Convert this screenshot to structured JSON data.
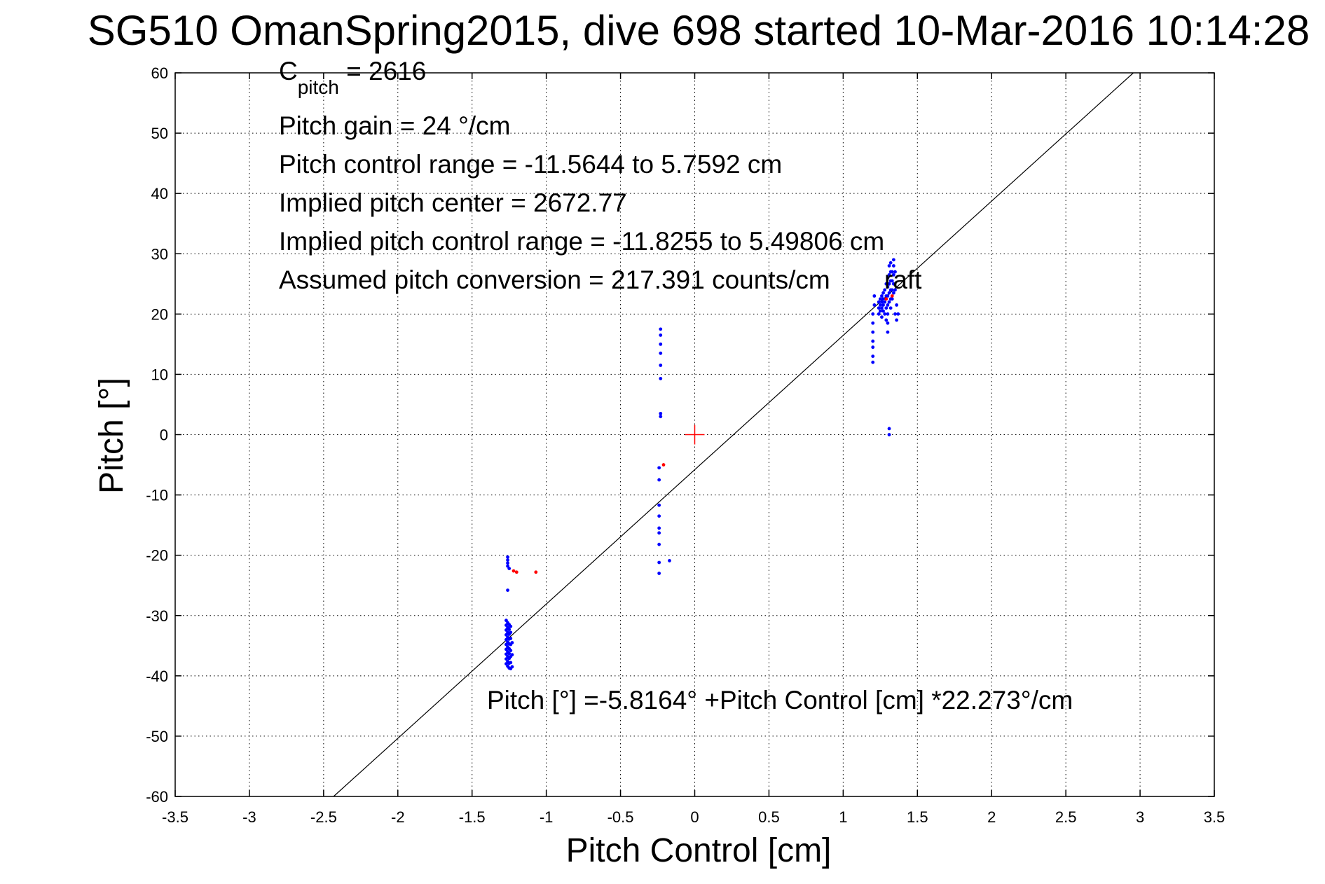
{
  "chart_data": {
    "type": "scatter",
    "title": "SG510 OmanSpring2015, dive 698 started 10-Mar-2016 10:14:28",
    "xlabel": "Pitch Control [cm]",
    "ylabel": "Pitch [°]",
    "xlim": [
      -3.5,
      3.5
    ],
    "ylim": [
      -60,
      60
    ],
    "xticks": [
      -3.5,
      -3,
      -2.5,
      -2,
      -1.5,
      -1,
      -0.5,
      0,
      0.5,
      1,
      1.5,
      2,
      2.5,
      3,
      3.5
    ],
    "yticks": [
      -60,
      -50,
      -40,
      -30,
      -20,
      -10,
      0,
      10,
      20,
      30,
      40,
      50,
      60
    ],
    "grid": true,
    "annotations": {
      "c_pitch_base": "C",
      "c_pitch_sub": "pitch",
      "c_pitch_value": " = 2616",
      "pitch_gain": "Pitch gain = 24 °/cm",
      "pitch_control_range": "Pitch control range = -11.5644 to 5.7592 cm",
      "implied_pitch_center": "Implied pitch center = 2672.77",
      "implied_pitch_control_range": "Implied pitch control range = -11.8255 to 5.49806 cm",
      "assumed_pitch_conversion": "Assumed pitch conversion = 217.391 counts/cm",
      "assumed_pitch_conversion_tail": "raft",
      "fit_equation": "Pitch [°] =-5.8164° +Pitch Control [cm] *22.273°/cm"
    },
    "fit_line": {
      "intercept": -5.8164,
      "slope": 22.273,
      "color": "#000000"
    },
    "center_marker": {
      "x": 0,
      "y": 0,
      "color": "#ff0000"
    },
    "series": [
      {
        "color": "#0000ff",
        "points": [
          [
            -1.26,
            -20.3
          ],
          [
            -1.26,
            -20.8
          ],
          [
            -1.26,
            -21.3
          ],
          [
            -1.26,
            -21.8
          ],
          [
            -1.25,
            -22.2
          ],
          [
            -1.26,
            -25.8
          ],
          [
            -1.27,
            -30.8
          ],
          [
            -1.27,
            -31.6
          ],
          [
            -1.27,
            -32.4
          ],
          [
            -1.27,
            -33.2
          ],
          [
            -1.27,
            -34.0
          ],
          [
            -1.27,
            -34.8
          ],
          [
            -1.27,
            -35.6
          ],
          [
            -1.27,
            -36.4
          ],
          [
            -1.27,
            -37.2
          ],
          [
            -1.27,
            -38.0
          ],
          [
            -1.26,
            -31.2
          ],
          [
            -1.26,
            -32.0
          ],
          [
            -1.26,
            -32.8
          ],
          [
            -1.26,
            -33.6
          ],
          [
            -1.26,
            -34.4
          ],
          [
            -1.26,
            -35.2
          ],
          [
            -1.26,
            -36.0
          ],
          [
            -1.26,
            -36.8
          ],
          [
            -1.26,
            -37.6
          ],
          [
            -1.26,
            -38.4
          ],
          [
            -1.25,
            -31.5
          ],
          [
            -1.25,
            -32.3
          ],
          [
            -1.25,
            -33.1
          ],
          [
            -1.25,
            -33.9
          ],
          [
            -1.25,
            -34.7
          ],
          [
            -1.25,
            -35.5
          ],
          [
            -1.25,
            -36.3
          ],
          [
            -1.25,
            -37.1
          ],
          [
            -1.25,
            -37.9
          ],
          [
            -1.25,
            -38.7
          ],
          [
            -1.24,
            -31.8
          ],
          [
            -1.24,
            -32.8
          ],
          [
            -1.24,
            -33.8
          ],
          [
            -1.24,
            -34.8
          ],
          [
            -1.24,
            -35.8
          ],
          [
            -1.24,
            -36.8
          ],
          [
            -1.24,
            -37.8
          ],
          [
            -1.24,
            -38.8
          ],
          [
            -1.23,
            -34.5
          ],
          [
            -1.23,
            -36.5
          ],
          [
            -1.23,
            -38.5
          ],
          [
            -0.23,
            17.5
          ],
          [
            -0.23,
            16.5
          ],
          [
            -0.23,
            15.0
          ],
          [
            -0.23,
            13.5
          ],
          [
            -0.23,
            11.5
          ],
          [
            -0.23,
            9.3
          ],
          [
            -0.23,
            3.5
          ],
          [
            -0.23,
            3.0
          ],
          [
            -0.24,
            -5.5
          ],
          [
            -0.24,
            -7.5
          ],
          [
            -0.24,
            -11.7
          ],
          [
            -0.24,
            -13.5
          ],
          [
            -0.24,
            -15.5
          ],
          [
            -0.24,
            -16.3
          ],
          [
            -0.24,
            -18.2
          ],
          [
            -0.24,
            -21.2
          ],
          [
            -0.24,
            -23.0
          ],
          [
            -0.17,
            -20.9
          ],
          [
            1.31,
            1.0
          ],
          [
            1.31,
            0.0
          ],
          [
            1.2,
            12.0
          ],
          [
            1.2,
            13.0
          ],
          [
            1.2,
            14.5
          ],
          [
            1.2,
            15.5
          ],
          [
            1.2,
            17.0
          ],
          [
            1.2,
            18.5
          ],
          [
            1.2,
            20.0
          ],
          [
            1.21,
            21.5
          ],
          [
            1.21,
            23.0
          ],
          [
            1.24,
            20.0
          ],
          [
            1.24,
            21.0
          ],
          [
            1.24,
            22.0
          ],
          [
            1.25,
            20.5
          ],
          [
            1.25,
            21.5
          ],
          [
            1.25,
            22.5
          ],
          [
            1.26,
            19.5
          ],
          [
            1.26,
            21.0
          ],
          [
            1.26,
            22.0
          ],
          [
            1.26,
            23.0
          ],
          [
            1.27,
            20.5
          ],
          [
            1.27,
            21.5
          ],
          [
            1.27,
            22.5
          ],
          [
            1.27,
            23.5
          ],
          [
            1.28,
            20.0
          ],
          [
            1.28,
            22.0
          ],
          [
            1.28,
            24.0
          ],
          [
            1.29,
            19.0
          ],
          [
            1.29,
            21.0
          ],
          [
            1.29,
            23.0
          ],
          [
            1.29,
            25.0
          ],
          [
            1.3,
            17.0
          ],
          [
            1.3,
            18.5
          ],
          [
            1.3,
            20.0
          ],
          [
            1.3,
            21.5
          ],
          [
            1.3,
            23.0
          ],
          [
            1.3,
            24.5
          ],
          [
            1.3,
            26.0
          ],
          [
            1.31,
            22.0
          ],
          [
            1.31,
            23.5
          ],
          [
            1.31,
            25.0
          ],
          [
            1.31,
            26.5
          ],
          [
            1.31,
            28.0
          ],
          [
            1.32,
            21.0
          ],
          [
            1.32,
            22.5
          ],
          [
            1.32,
            24.0
          ],
          [
            1.32,
            25.5
          ],
          [
            1.32,
            27.0
          ],
          [
            1.32,
            28.5
          ],
          [
            1.33,
            22.5
          ],
          [
            1.33,
            24.0
          ],
          [
            1.33,
            25.5
          ],
          [
            1.33,
            27.0
          ],
          [
            1.34,
            23.5
          ],
          [
            1.34,
            25.0
          ],
          [
            1.34,
            26.5
          ],
          [
            1.34,
            28.0
          ],
          [
            1.34,
            29.0
          ],
          [
            1.35,
            20.0
          ],
          [
            1.35,
            24.0
          ],
          [
            1.35,
            27.0
          ],
          [
            1.36,
            19.0
          ],
          [
            1.36,
            21.5
          ],
          [
            1.37,
            20.0
          ]
        ]
      },
      {
        "color": "#ff0000",
        "points": [
          [
            -1.22,
            -22.6
          ],
          [
            -1.2,
            -22.8
          ],
          [
            -1.07,
            -22.8
          ],
          [
            -0.21,
            -5.0
          ],
          [
            1.29,
            22.5
          ],
          [
            1.33,
            23.0
          ]
        ]
      }
    ]
  }
}
